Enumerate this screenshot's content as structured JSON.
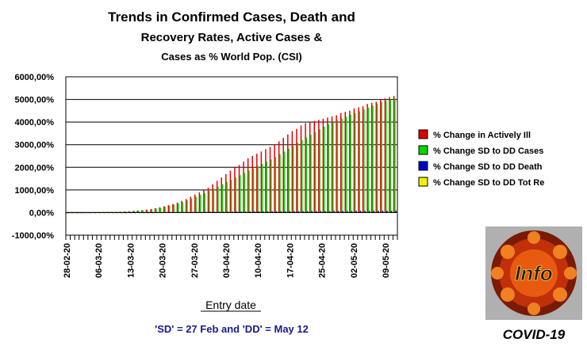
{
  "chart_data": {
    "type": "bar",
    "title_lines": [
      "Trends in Confirmed Cases, Death and",
      "Recovery Rates, Active Cases &",
      "Cases as % World Pop. (CSI)"
    ],
    "xlabel": "Entry date",
    "ylabel": "",
    "ylim": [
      -1000,
      6000
    ],
    "yticks": [
      "6000,00%",
      "5000,00%",
      "4000,00%",
      "3000,00%",
      "2000,00%",
      "1000,00%",
      "0,00%",
      "-1000,00%"
    ],
    "grid": true,
    "legend_position": "right",
    "x_tick_labels": [
      "28-02-20",
      "06-03-20",
      "13-03-20",
      "20-03-20",
      "27-03-20",
      "03-04-20",
      "10-04-20",
      "17-04-20",
      "25-04-20",
      "02-05-20",
      "09-05-20"
    ],
    "num_points": 75,
    "series": [
      {
        "name": "% Change in Actively Ill",
        "color": "#e00000",
        "values": [
          0,
          0,
          -5,
          -10,
          -5,
          0,
          5,
          10,
          15,
          20,
          25,
          30,
          35,
          45,
          55,
          70,
          85,
          100,
          125,
          150,
          190,
          230,
          280,
          330,
          380,
          440,
          520,
          600,
          700,
          800,
          900,
          1000,
          1100,
          1250,
          1400,
          1550,
          1700,
          1850,
          2000,
          2100,
          2250,
          2400,
          2500,
          2600,
          2700,
          2800,
          2900,
          3000,
          3150,
          3300,
          3450,
          3600,
          3700,
          3850,
          3950,
          4000,
          4050,
          4100,
          4150,
          4200,
          4250,
          4300,
          4400,
          4450,
          4500,
          4600,
          4650,
          4700,
          4800,
          4850,
          4900,
          5000,
          5050,
          5100,
          5150
        ]
      },
      {
        "name": "% Change SD to DD Cases",
        "color": "#00d800",
        "values": [
          0,
          0,
          0,
          2,
          5,
          8,
          12,
          16,
          20,
          25,
          30,
          35,
          40,
          50,
          60,
          75,
          90,
          105,
          130,
          155,
          180,
          210,
          250,
          300,
          350,
          400,
          460,
          540,
          620,
          700,
          780,
          860,
          950,
          1050,
          1150,
          1250,
          1350,
          1450,
          1550,
          1650,
          1750,
          1850,
          1950,
          2050,
          2150,
          2250,
          2350,
          2450,
          2580,
          2700,
          2820,
          2950,
          3080,
          3200,
          3320,
          3440,
          3560,
          3680,
          3800,
          3900,
          4000,
          4080,
          4160,
          4240,
          4320,
          4400,
          4480,
          4560,
          4640,
          4720,
          4800,
          4880,
          4950,
          5000,
          5050
        ]
      },
      {
        "name": "% Change SD to DD Death",
        "color": "#0000cc",
        "values": [
          0,
          0,
          0,
          0,
          0,
          0,
          0,
          0,
          0,
          0,
          0,
          0,
          0,
          0,
          0,
          0,
          0,
          0,
          0,
          0,
          10,
          10,
          15,
          15,
          20,
          20,
          25,
          25,
          30,
          30,
          30,
          35,
          35,
          35,
          40,
          40,
          40,
          40,
          45,
          45,
          45,
          45,
          50,
          50,
          50,
          50,
          55,
          55,
          55,
          55,
          60,
          60,
          60,
          60,
          60,
          65,
          65,
          65,
          65,
          65,
          70,
          70,
          70,
          70,
          70,
          75,
          75,
          75,
          75,
          75,
          80,
          80,
          80,
          80,
          80
        ]
      },
      {
        "name": "% Change SD to DD Tot Re",
        "color": "#f0f000",
        "values": [
          0,
          0,
          0,
          0,
          0,
          0,
          0,
          0,
          0,
          0,
          0,
          0,
          0,
          0,
          0,
          0,
          0,
          0,
          0,
          0,
          0,
          0,
          0,
          0,
          0,
          0,
          0,
          0,
          0,
          0,
          0,
          0,
          0,
          0,
          0,
          0,
          0,
          0,
          0,
          0,
          0,
          0,
          0,
          0,
          0,
          0,
          0,
          0,
          0,
          0,
          0,
          0,
          0,
          0,
          0,
          0,
          0,
          0,
          0,
          0,
          0,
          0,
          0,
          0,
          0,
          0,
          0,
          0,
          0,
          0,
          0,
          0,
          0,
          0,
          0
        ]
      }
    ],
    "legend": [
      {
        "label": "% Change in Actively Ill",
        "color": "#e00000"
      },
      {
        "label": "% Change SD to DD Cases",
        "color": "#00d800"
      },
      {
        "label": "% Change SD to DD Death",
        "color": "#0000cc"
      },
      {
        "label": "% Change SD to DD Tot Re",
        "color": "#f0f000"
      }
    ],
    "footnote": "'SD' = 27 Feb and 'DD' = May 12"
  },
  "logo": {
    "text": "Info",
    "caption": "COVID-19"
  }
}
